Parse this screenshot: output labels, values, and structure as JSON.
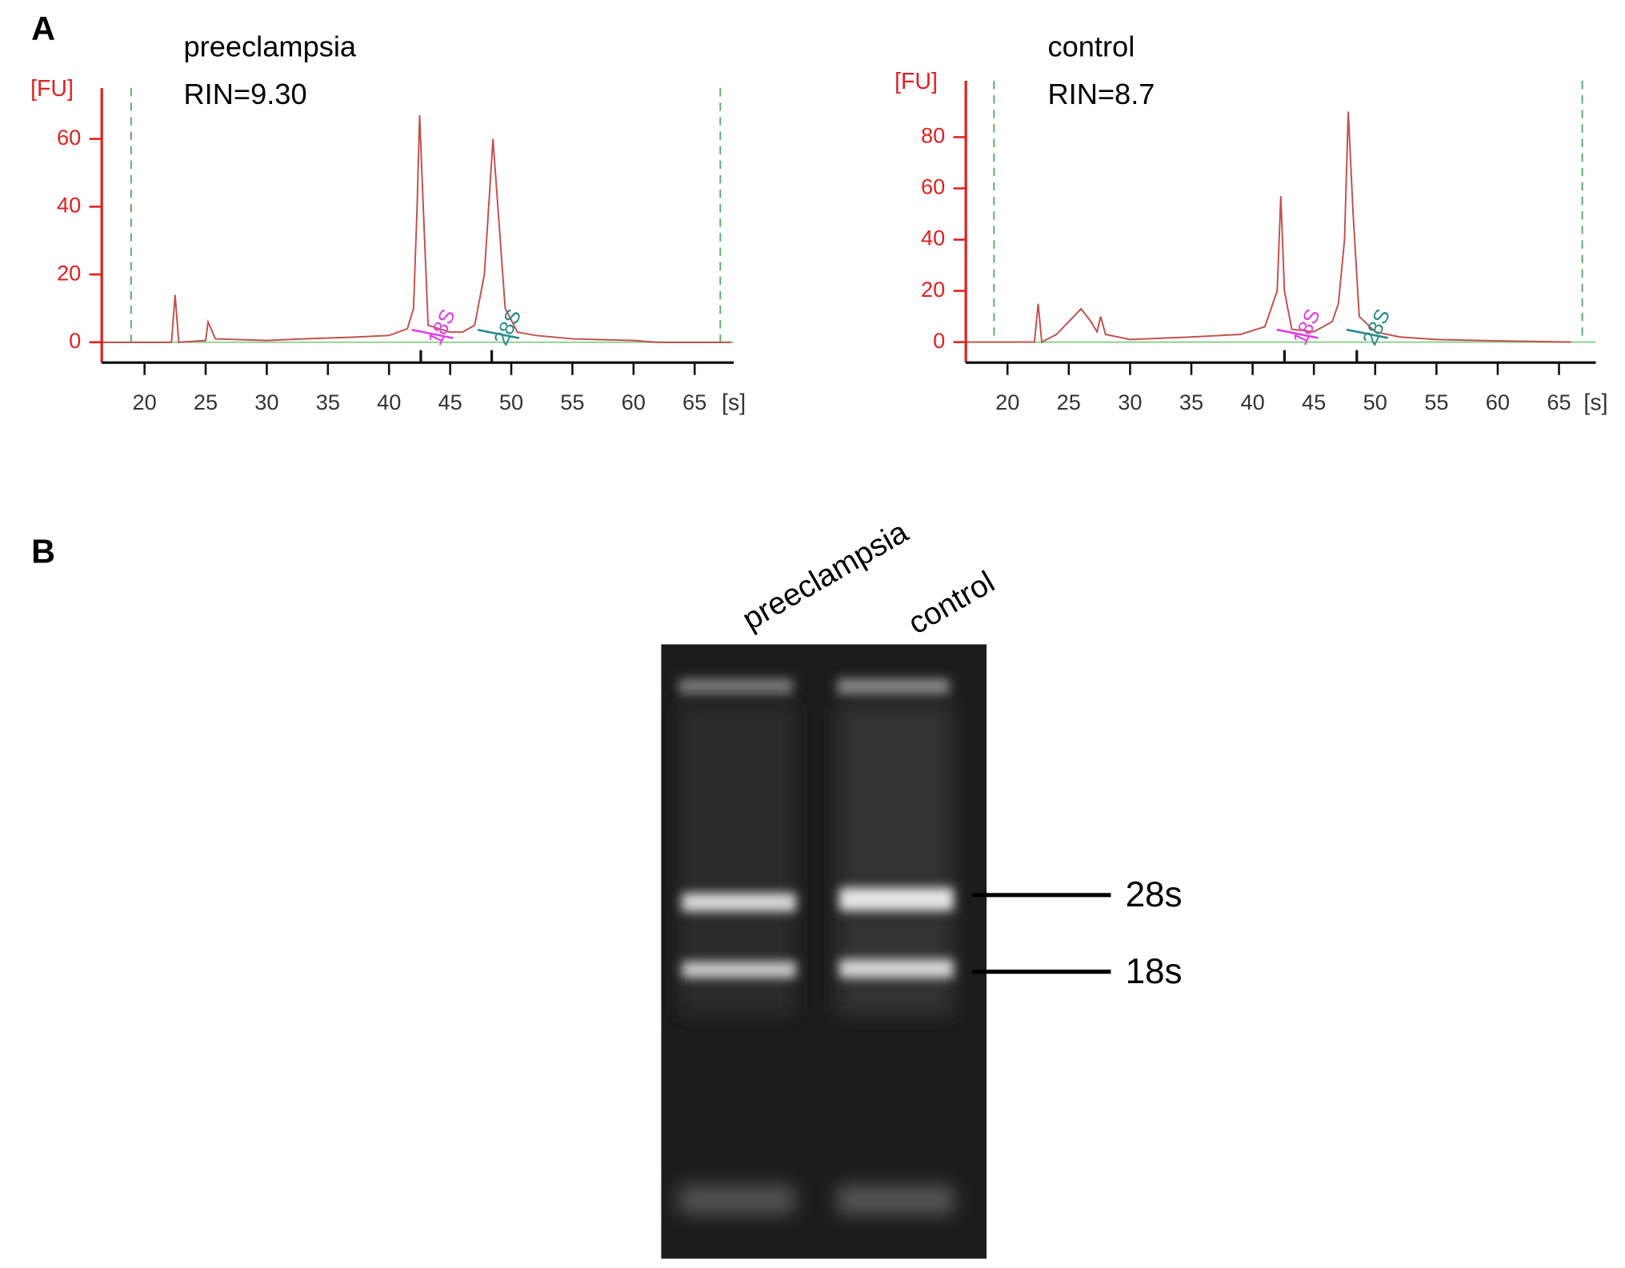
{
  "panels": [
    "A",
    "B"
  ],
  "chart_data": [
    {
      "type": "line",
      "title": "preeclampsia",
      "subtitle": "RIN=9.30",
      "y_label": "[FU]",
      "x_label": "[s]",
      "xlim": [
        16.5,
        68.2
      ],
      "ylim": [
        -6,
        75
      ],
      "xticks": [
        20,
        25,
        30,
        35,
        40,
        45,
        50,
        55,
        60,
        65
      ],
      "yticks": [
        0,
        20,
        40,
        60
      ],
      "markers": [
        18.9,
        67.1
      ],
      "peak_marks": [
        42.6,
        48.4
      ],
      "annotations": [
        {
          "text": "18S",
          "x": 44.4,
          "color": "#e040e0"
        },
        {
          "text": "28S",
          "x": 49.8,
          "color": "#2a8a8a"
        }
      ],
      "series": [
        {
          "color": "#c0504d",
          "x": [
            16.5,
            22.2,
            22.5,
            22.8,
            25,
            25.2,
            25.8,
            30,
            33,
            37,
            40,
            41.5,
            42,
            42.3,
            42.5,
            42.8,
            43.2,
            45,
            46,
            47,
            47.8,
            48.5,
            49,
            49.5,
            50.5,
            52,
            55,
            60,
            62,
            68
          ],
          "values": [
            0,
            0,
            14,
            0,
            0.5,
            6,
            1,
            0.5,
            1,
            1.5,
            2,
            4,
            10,
            40,
            67,
            40,
            5,
            3,
            3,
            5,
            20,
            60,
            35,
            10,
            3,
            2,
            1,
            0.5,
            0,
            0
          ]
        }
      ]
    },
    {
      "type": "line",
      "title": "control",
      "subtitle": "RIN=8.7",
      "y_label": "[FU]",
      "x_label": "[s]",
      "xlim": [
        16.6,
        68.0
      ],
      "ylim": [
        -8,
        102
      ],
      "xticks": [
        20,
        25,
        30,
        35,
        40,
        45,
        50,
        55,
        60,
        65
      ],
      "yticks": [
        0,
        20,
        40,
        60,
        80
      ],
      "markers": [
        18.9,
        66.9
      ],
      "peak_marks": [
        42.6,
        48.5
      ],
      "annotations": [
        {
          "text": "18S",
          "x": 44.5,
          "color": "#e040e0"
        },
        {
          "text": "28S",
          "x": 50.2,
          "color": "#2a8a8a"
        }
      ],
      "series": [
        {
          "color": "#c0504d",
          "x": [
            16.6,
            22.2,
            22.5,
            22.8,
            24,
            25,
            26,
            26.8,
            27.3,
            27.6,
            28,
            30,
            35,
            39,
            41,
            42,
            42.3,
            42.6,
            43.2,
            45,
            46.5,
            47,
            47.5,
            47.8,
            48.2,
            48.7,
            50,
            52,
            55,
            60,
            66
          ],
          "values": [
            0,
            0,
            15,
            0,
            3,
            8,
            13,
            8,
            4,
            10,
            3,
            1,
            2,
            3,
            6,
            20,
            57,
            20,
            5,
            4,
            8,
            15,
            40,
            90,
            50,
            10,
            4,
            2,
            1,
            0.5,
            0
          ]
        }
      ]
    }
  ],
  "gel": {
    "lanes": [
      "preeclampsia",
      "control"
    ],
    "bands": [
      "28s",
      "18s"
    ]
  }
}
